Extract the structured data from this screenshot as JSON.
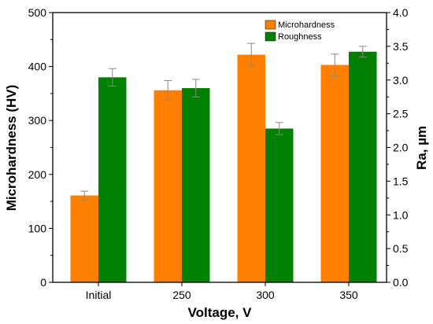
{
  "chart_data": {
    "type": "bar",
    "categories": [
      "Initial",
      "250",
      "300",
      "350"
    ],
    "xlabel": "Voltage, V",
    "ylabel_left": "Microhardness (HV)",
    "ylabel_right": "Ra, µm",
    "ylim_left": [
      0,
      500
    ],
    "ylim_right": [
      0.0,
      4.0
    ],
    "yticks_left": [
      "0",
      "100",
      "200",
      "300",
      "400",
      "500"
    ],
    "yticks_right": [
      "0.0",
      "0.5",
      "1.0",
      "1.5",
      "2.0",
      "2.5",
      "3.0",
      "3.5",
      "4.0"
    ],
    "legend_position": "top-right",
    "series": [
      {
        "name": "Microhardness",
        "axis": "left",
        "color": "#FF8000",
        "values": [
          161,
          356,
          422,
          403
        ],
        "errors": [
          8,
          18,
          21,
          20
        ]
      },
      {
        "name": "Roughness",
        "axis": "right",
        "color": "#008000",
        "values": [
          3.04,
          2.88,
          2.28,
          3.42
        ],
        "errors": [
          0.13,
          0.13,
          0.09,
          0.08
        ]
      }
    ]
  }
}
